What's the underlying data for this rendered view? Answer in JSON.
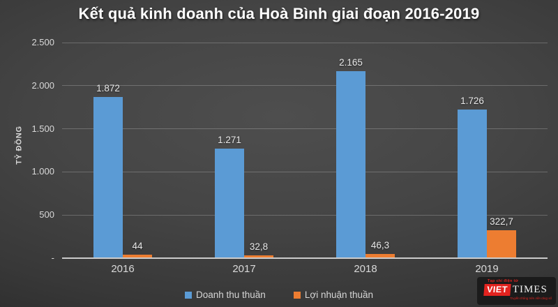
{
  "chart_data": {
    "type": "bar",
    "title": "Kết quả kinh doanh của Hoà Bình giai đoạn 2016-2019",
    "xlabel": "",
    "ylabel": "TỶ ĐỒNG",
    "ylim": [
      0,
      2500
    ],
    "grid": true,
    "legend_position": "bottom",
    "categories": [
      "2016",
      "2017",
      "2018",
      "2019"
    ],
    "series": [
      {
        "name": "Doanh thu thuần",
        "color": "#5B9BD5",
        "values": [
          1872,
          1271,
          2165,
          1726
        ],
        "labels": [
          "1.872",
          "1.271",
          "2.165",
          "1.726"
        ]
      },
      {
        "name": "Lợi nhuận thuần",
        "color": "#ED7D31",
        "values": [
          44,
          32.8,
          46.3,
          322.7
        ],
        "labels": [
          "44",
          "32,8",
          "46,3",
          "322,7"
        ]
      }
    ],
    "y_ticks": [
      {
        "value": 0,
        "label": "-"
      },
      {
        "value": 500,
        "label": "500"
      },
      {
        "value": 1000,
        "label": "1.000"
      },
      {
        "value": 1500,
        "label": "1.500"
      },
      {
        "value": 2000,
        "label": "2.000"
      },
      {
        "value": 2500,
        "label": "2.500"
      }
    ]
  },
  "legend": {
    "items": [
      {
        "label": "Doanh thu thuần",
        "color": "#5B9BD5"
      },
      {
        "label": "Lợi nhuận thuần",
        "color": "#ED7D31"
      }
    ]
  },
  "watermark": {
    "publication_type": "Tạp chí điện tử",
    "brand_primary": "VIET",
    "brand_secondary": "TIMES",
    "tagline": "Truyền thông trên nền tảng số",
    "brand_color": "#e2231f"
  }
}
